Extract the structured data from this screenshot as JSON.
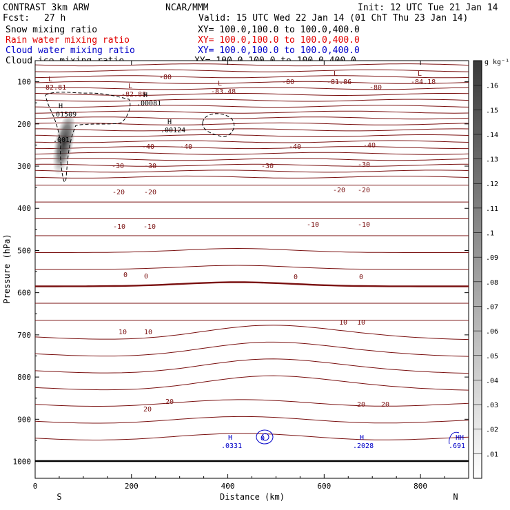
{
  "header": {
    "model": "CONTRAST   3km ARW",
    "fcst_label": "Fcst:",
    "fcst_value": "27 h",
    "center": "NCAR/MMM",
    "init": "Init: 12 UTC Tue 21 Jan 14",
    "valid": "Valid: 15 UTC Wed 22 Jan 14 (01 ChT Thu 23 Jan 14)",
    "fields": [
      {
        "name": "Snow mixing ratio",
        "xy": "XY= 100.0,100.0 to 100.0,400.0",
        "color": "#000000"
      },
      {
        "name": "Rain water mixing ratio",
        "xy": "XY= 100.0,100.0 to 100.0,400.0",
        "color": "#e00000"
      },
      {
        "name": "Cloud water mixing ratio",
        "xy": "XY= 100.0,100.0 to 100.0,400.0",
        "color": "#0000c8"
      },
      {
        "name": "Cloud ice mixing ratio",
        "xy": "XY= 100.0,100.0 to 100.0,400.0",
        "color": "#000000"
      }
    ]
  },
  "chart_data": {
    "type": "contour",
    "xlabel": "Distance (km)",
    "ylabel": "Pressure (hPa)",
    "xlim": [
      0,
      900
    ],
    "ylim": [
      1040,
      50
    ],
    "x_ticks": [
      "0",
      "200",
      "400",
      "600",
      "800"
    ],
    "y_ticks": [
      "100",
      "200",
      "300",
      "400",
      "500",
      "600",
      "700",
      "800",
      "900",
      "1000"
    ],
    "direction_labels": [
      "S",
      "N"
    ],
    "colorbar": {
      "unit": "g kg⁻¹",
      "ticks": [
        ".16",
        ".15",
        ".14",
        ".13",
        ".12",
        ".11",
        ".1",
        ".09",
        ".08",
        ".07",
        ".06",
        ".05",
        ".04",
        ".03",
        ".02",
        ".01"
      ],
      "range": [
        0,
        0.17
      ]
    },
    "temperature_labels": [
      "-80",
      "-40",
      "-30",
      "-20",
      "-10",
      "0",
      "10",
      "20"
    ],
    "extrema": [
      {
        "type": "L",
        "label": "-82.81",
        "color": "#7a1010"
      },
      {
        "type": "L",
        "label": "-82.88",
        "color": "#7a1010"
      },
      {
        "type": "L",
        "label": "-83.48",
        "color": "#7a1010"
      },
      {
        "type": "L",
        "label": "-81.86",
        "color": "#7a1010"
      },
      {
        "type": "L",
        "label": "-84.18",
        "color": "#7a1010"
      },
      {
        "type": "H",
        "label": ".01509",
        "color": "#000000"
      },
      {
        "type": "H",
        "label": ".00081",
        "color": "#000000"
      },
      {
        "type": "H",
        "label": ".00124",
        "color": "#000000"
      },
      {
        "type": "H",
        "label": ".0331",
        "color": "#0000c8"
      },
      {
        "type": "H",
        "label": ".2028",
        "color": "#0000c8"
      },
      {
        "type": "HH",
        "label": ".691",
        "color": "#0000c8"
      }
    ],
    "annotations": [
      ".001",
      "0"
    ],
    "colors": {
      "isotherm": "#7a1010",
      "snow": "#000000",
      "cloud_water": "#0000c8"
    }
  }
}
